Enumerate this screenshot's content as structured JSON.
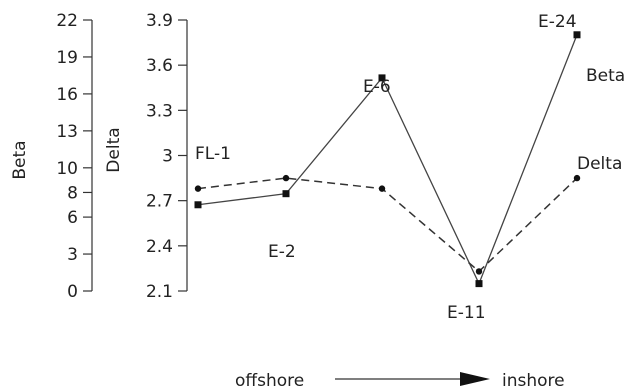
{
  "chart_data": {
    "type": "line",
    "categories": [
      "FL-1",
      "E-2",
      "E-6",
      "E-11",
      "E-24"
    ],
    "series": [
      {
        "name": "Beta",
        "axis": "left_outer",
        "style": "solid",
        "values": [
          7.0,
          7.9,
          17.3,
          0.6,
          20.8
        ]
      },
      {
        "name": "Delta",
        "axis": "left_inner",
        "style": "dashed",
        "values": [
          2.78,
          2.85,
          2.78,
          2.23,
          2.85
        ]
      }
    ],
    "beta_axis": {
      "label": "Beta",
      "ylim": [
        0,
        22
      ],
      "ticks": [
        "0",
        "3",
        "6",
        "8",
        "10",
        "13",
        "16",
        "19",
        "22"
      ]
    },
    "delta_axis": {
      "label": "Delta",
      "ylim": [
        2.1,
        3.9
      ],
      "ticks": [
        "2.1",
        "2.4",
        "2.7",
        "3",
        "3.3",
        "3.6",
        "3.9"
      ]
    },
    "series_end_labels": [
      "Beta",
      "Delta"
    ],
    "footer": {
      "left": "offshore",
      "right": "inshore"
    },
    "grid": false,
    "legend": "none"
  }
}
